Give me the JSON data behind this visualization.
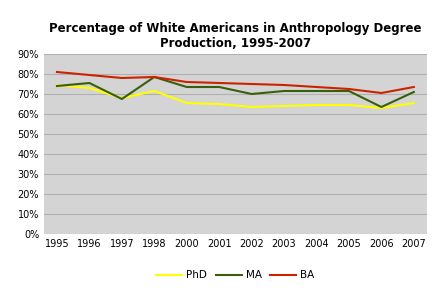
{
  "title": "Percentage of White Americans in Anthropology Degree\nProduction, 1995-2007",
  "years_labels": [
    "1995",
    "1996",
    "1997",
    "1998",
    "2000",
    "2001",
    "2002",
    "2003",
    "2004",
    "2005",
    "2006",
    "2007"
  ],
  "phd": [
    74.5,
    73.0,
    68.0,
    71.5,
    65.5,
    65.0,
    63.5,
    64.0,
    64.5,
    64.5,
    63.0,
    65.5
  ],
  "ma": [
    74.0,
    75.5,
    67.5,
    78.5,
    73.5,
    73.5,
    70.0,
    71.5,
    71.5,
    71.5,
    63.5,
    71.0
  ],
  "ba": [
    81.0,
    79.5,
    78.0,
    78.5,
    76.0,
    75.5,
    75.0,
    74.5,
    73.5,
    72.5,
    70.5,
    73.5
  ],
  "phd_color": "#ffff00",
  "ma_color": "#3a5f0b",
  "ba_color": "#cc2200",
  "fig_bg": "#ffffff",
  "plot_bg": "#d4d4d4",
  "grid_color": "#b0b0b0",
  "legend_labels": [
    "PhD",
    "MA",
    "BA"
  ]
}
